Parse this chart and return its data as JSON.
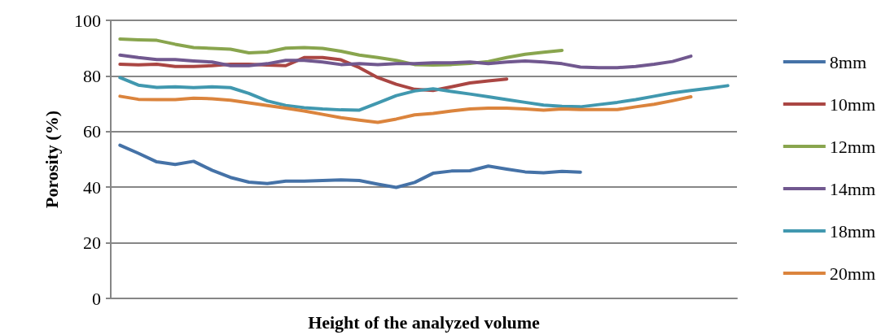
{
  "chart_data": {
    "type": "line",
    "xlabel": "Height of the analyzed volume",
    "ylabel": "Porosity (%)",
    "categories": [
      null,
      null,
      null,
      null,
      null,
      null,
      null,
      null,
      null,
      null,
      null,
      null,
      null,
      null,
      null,
      null,
      null,
      null,
      null,
      null,
      null,
      null,
      null,
      null,
      null,
      null,
      null,
      null,
      null,
      null,
      null,
      null,
      null,
      null
    ],
    "series": [
      {
        "name": "8mm",
        "color": "#4572a7",
        "values": [
          55.1,
          52.2,
          49.1,
          48.2,
          49.3,
          46.1,
          43.5,
          41.8,
          41.3,
          42.2,
          42.2,
          42.4,
          42.6,
          42.4,
          41.1,
          39.9,
          41.7,
          45.0,
          45.8,
          45.9,
          47.6,
          46.5,
          45.5,
          45.2,
          45.7,
          45.4,
          null,
          null,
          null,
          null,
          null,
          null,
          null,
          null
        ]
      },
      {
        "name": "10mm",
        "color": "#aa4643",
        "values": [
          84.2,
          84.0,
          84.2,
          83.4,
          83.4,
          83.7,
          84.2,
          84.2,
          83.9,
          83.7,
          86.6,
          86.6,
          85.8,
          83.0,
          79.4,
          77.0,
          75.2,
          74.8,
          76.1,
          77.5,
          78.2,
          78.9,
          null,
          null,
          null,
          null,
          null,
          null,
          null,
          null,
          null,
          null,
          null,
          null
        ]
      },
      {
        "name": "12mm",
        "color": "#89a54e",
        "values": [
          93.3,
          93.0,
          92.8,
          91.4,
          90.2,
          89.9,
          89.6,
          88.3,
          88.6,
          90.0,
          90.2,
          89.9,
          88.9,
          87.5,
          86.6,
          85.6,
          84.1,
          83.9,
          84.1,
          84.5,
          85.2,
          86.6,
          87.8,
          88.5,
          89.2,
          null,
          null,
          null,
          null,
          null,
          null,
          null,
          null,
          null
        ]
      },
      {
        "name": "14mm",
        "color": "#71588f",
        "values": [
          87.5,
          86.6,
          85.9,
          85.9,
          85.4,
          85.0,
          83.7,
          83.7,
          84.4,
          85.6,
          85.6,
          85.0,
          84.1,
          84.4,
          84.1,
          84.4,
          84.4,
          84.7,
          84.7,
          85.0,
          84.4,
          85.0,
          85.4,
          85.0,
          84.4,
          83.2,
          83.0,
          83.0,
          83.4,
          84.2,
          85.2,
          87.1,
          null,
          null
        ]
      },
      {
        "name": "18mm",
        "color": "#4198af",
        "values": [
          79.4,
          76.7,
          75.9,
          76.1,
          75.8,
          76.1,
          75.8,
          73.7,
          71.0,
          69.4,
          68.6,
          68.1,
          67.8,
          67.7,
          70.3,
          72.9,
          74.6,
          75.4,
          74.4,
          73.5,
          72.5,
          71.5,
          70.5,
          69.5,
          69.1,
          68.9,
          69.7,
          70.5,
          71.5,
          72.7,
          73.9,
          74.8,
          75.6,
          76.5
        ]
      },
      {
        "name": "20mm",
        "color": "#db843d",
        "values": [
          72.7,
          71.6,
          71.5,
          71.5,
          72.0,
          71.8,
          71.3,
          70.3,
          69.4,
          68.4,
          67.4,
          66.2,
          65.0,
          64.1,
          63.3,
          64.5,
          66.0,
          66.5,
          67.4,
          68.1,
          68.4,
          68.4,
          68.1,
          67.7,
          68.1,
          67.9,
          67.9,
          67.9,
          68.9,
          69.8,
          71.1,
          72.5,
          null,
          null
        ]
      }
    ],
    "ylim": [
      0,
      100
    ],
    "yticks": [
      0,
      20,
      40,
      60,
      80,
      100
    ],
    "grid": "y",
    "legend": "right",
    "marker": "none",
    "line_style": "solid"
  }
}
